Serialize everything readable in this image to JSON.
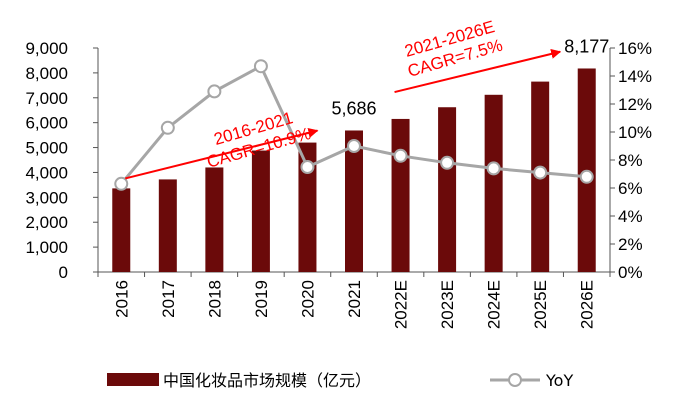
{
  "chart_data": {
    "type": "bar",
    "categories": [
      "2016",
      "2017",
      "2018",
      "2019",
      "2020",
      "2021",
      "2022E",
      "2023E",
      "2024E",
      "2025E",
      "2026E"
    ],
    "series": [
      {
        "name": "中国化妆品市场规模（亿元）",
        "type": "bar",
        "axis": "left",
        "values": [
          3360,
          3720,
          4200,
          4880,
          5200,
          5686,
          6150,
          6620,
          7120,
          7650,
          8177
        ],
        "color": "#6b0a0a"
      },
      {
        "name": "YoY",
        "type": "line",
        "axis": "right",
        "values": [
          6.3,
          10.3,
          12.9,
          14.7,
          7.5,
          9.0,
          8.3,
          7.8,
          7.4,
          7.1,
          6.8
        ],
        "color": "#a6a6a6"
      }
    ],
    "y_left": {
      "range": [
        0,
        9000
      ],
      "ticks": [
        "0",
        "1,000",
        "2,000",
        "3,000",
        "4,000",
        "5,000",
        "6,000",
        "7,000",
        "8,000",
        "9,000"
      ]
    },
    "y_right": {
      "range": [
        0,
        16
      ],
      "ticks": [
        "0%",
        "2%",
        "4%",
        "6%",
        "8%",
        "10%",
        "12%",
        "14%",
        "16%"
      ]
    },
    "data_labels": [
      {
        "category": "2021",
        "text": "5,686"
      },
      {
        "category": "2026E",
        "text": "8,177"
      }
    ],
    "annotations": [
      {
        "lines": [
          "2016-2021",
          "CAGR=10.9%"
        ],
        "color": "#ff0000"
      },
      {
        "lines": [
          "2021-2026E",
          "CAGR=7.5%"
        ],
        "color": "#ff0000"
      }
    ],
    "grid": false,
    "legend_position": "bottom"
  }
}
